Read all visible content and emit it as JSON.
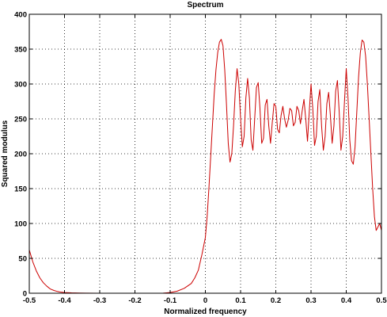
{
  "chart_data": {
    "type": "line",
    "title": "Spectrum",
    "xlabel": "Normalized frequency",
    "ylabel": "Squared modulus",
    "xlim": [
      -0.5,
      0.5
    ],
    "ylim": [
      0,
      400
    ],
    "grid": true,
    "x_ticks": [
      -0.5,
      -0.4,
      -0.3,
      -0.2,
      -0.1,
      0,
      0.1,
      0.2,
      0.3,
      0.4,
      0.5
    ],
    "x_tick_labels": [
      "-0.5",
      "-0.4",
      "-0.3",
      "-0.2",
      "-0.1",
      "0",
      "0.1",
      "0.2",
      "0.3",
      "0.4",
      "0.5"
    ],
    "y_ticks": [
      0,
      50,
      100,
      150,
      200,
      250,
      300,
      350,
      400
    ],
    "y_tick_labels": [
      "0",
      "50",
      "100",
      "150",
      "200",
      "250",
      "300",
      "350",
      "400"
    ],
    "series": [
      {
        "color": "#cc0000",
        "x": [
          -0.5,
          -0.49,
          -0.48,
          -0.47,
          -0.46,
          -0.45,
          -0.44,
          -0.43,
          -0.42,
          -0.41,
          -0.4,
          -0.38,
          -0.36,
          -0.34,
          -0.3,
          -0.2,
          -0.12,
          -0.1,
          -0.08,
          -0.06,
          -0.04,
          -0.03,
          -0.02,
          -0.01,
          0,
          0.005,
          0.01,
          0.015,
          0.02,
          0.025,
          0.03,
          0.035,
          0.04,
          0.045,
          0.05,
          0.055,
          0.06,
          0.065,
          0.07,
          0.075,
          0.08,
          0.085,
          0.09,
          0.095,
          0.1,
          0.105,
          0.11,
          0.115,
          0.12,
          0.125,
          0.13,
          0.135,
          0.14,
          0.145,
          0.15,
          0.155,
          0.16,
          0.165,
          0.17,
          0.175,
          0.18,
          0.185,
          0.19,
          0.195,
          0.2,
          0.205,
          0.21,
          0.215,
          0.22,
          0.225,
          0.23,
          0.235,
          0.24,
          0.245,
          0.25,
          0.255,
          0.26,
          0.265,
          0.27,
          0.275,
          0.28,
          0.285,
          0.29,
          0.295,
          0.3,
          0.305,
          0.31,
          0.315,
          0.32,
          0.325,
          0.33,
          0.335,
          0.34,
          0.345,
          0.35,
          0.355,
          0.36,
          0.365,
          0.37,
          0.375,
          0.38,
          0.385,
          0.39,
          0.395,
          0.4,
          0.405,
          0.41,
          0.415,
          0.42,
          0.425,
          0.43,
          0.435,
          0.44,
          0.445,
          0.45,
          0.455,
          0.46,
          0.465,
          0.47,
          0.475,
          0.48,
          0.485,
          0.49,
          0.495,
          0.5
        ],
        "y": [
          62,
          45,
          32,
          22,
          15,
          10,
          6,
          4,
          2.5,
          1.5,
          1,
          0.5,
          0.3,
          0.1,
          0,
          0,
          0.2,
          1,
          3,
          7,
          14,
          22,
          33,
          55,
          80,
          110,
          150,
          195,
          240,
          285,
          320,
          345,
          360,
          364,
          355,
          320,
          270,
          215,
          188,
          200,
          240,
          290,
          322,
          300,
          250,
          210,
          225,
          280,
          308,
          280,
          220,
          205,
          250,
          295,
          302,
          265,
          215,
          222,
          270,
          278,
          240,
          215,
          245,
          272,
          268,
          235,
          230,
          255,
          268,
          250,
          238,
          248,
          265,
          262,
          240,
          245,
          268,
          262,
          243,
          262,
          278,
          250,
          218,
          260,
          300,
          265,
          212,
          225,
          275,
          292,
          240,
          205,
          225,
          272,
          288,
          255,
          215,
          240,
          290,
          305,
          260,
          205,
          225,
          275,
          322,
          280,
          220,
          190,
          185,
          210,
          260,
          310,
          345,
          363,
          360,
          340,
          300,
          250,
          200,
          150,
          110,
          90,
          95,
          100,
          90
        ]
      }
    ]
  }
}
